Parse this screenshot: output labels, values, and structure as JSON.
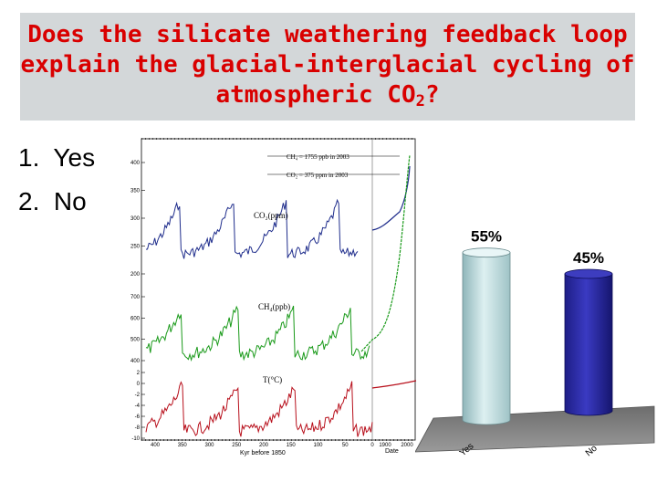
{
  "slide": {
    "title_main": "Does the silicate weathering feedback loop explain the glacial-interglacial cycling of atmospheric CO",
    "title_sub": "2",
    "title_end": "?",
    "options": [
      {
        "number": "1.",
        "label": "Yes"
      },
      {
        "number": "2.",
        "label": "No"
      }
    ]
  },
  "ice_core_figure": {
    "annotations": [
      "CH₄ = 1755 ppb in 2003",
      "CO₂ = 375 ppm in 2003"
    ],
    "panels": [
      {
        "label": "CO₂(ppm)",
        "ticks": [
          "400",
          "350",
          "300",
          "250",
          "200"
        ],
        "color": "#1f2d8c"
      },
      {
        "label": "CH₄(ppb)",
        "ticks": [
          "700",
          "600",
          "500",
          "400"
        ],
        "color": "#1a9a1a"
      },
      {
        "label": "T(°C)",
        "ticks": [
          "2",
          "0",
          "-2",
          "-4",
          "-6",
          "-8",
          "-10"
        ],
        "color": "#b8101c"
      }
    ],
    "x_ticks": [
      "400",
      "350",
      "300",
      "250",
      "200",
      "150",
      "100",
      "50",
      "0"
    ],
    "x_ticks_recent": [
      "1900",
      "2000"
    ],
    "xlabel": "Kyr before 1850",
    "xlabel_recent": "Date"
  },
  "chart_data": {
    "type": "bar",
    "categories": [
      "Yes",
      "No"
    ],
    "values": [
      55,
      45
    ],
    "value_labels": [
      "55%",
      "45%"
    ],
    "colors": [
      "#c5e1e3",
      "#2b2ba6"
    ],
    "ylim": [
      0,
      60
    ],
    "grid": false,
    "legend": "none"
  }
}
